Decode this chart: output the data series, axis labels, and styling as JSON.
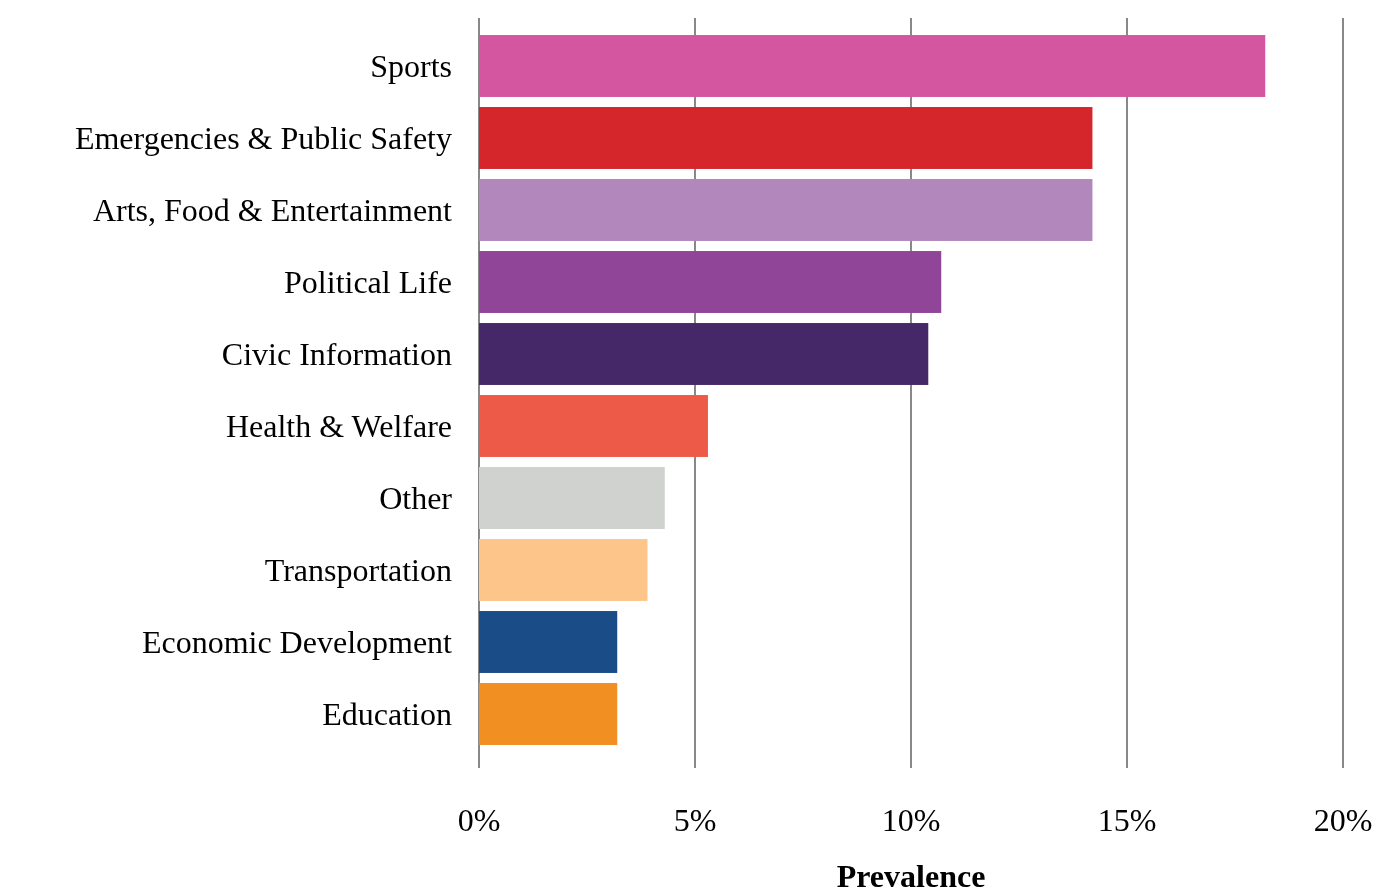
{
  "chart_data": {
    "type": "bar",
    "orientation": "horizontal",
    "xlabel": "Prevalence",
    "categories": [
      "Sports",
      "Emergencies & Public Safety",
      "Arts, Food & Entertainment",
      "Political Life",
      "Civic Information",
      "Health & Welfare",
      "Other",
      "Transportation",
      "Economic Development",
      "Education"
    ],
    "values": [
      18.2,
      14.2,
      14.2,
      10.7,
      10.4,
      5.3,
      4.3,
      3.9,
      3.2,
      3.2
    ],
    "colors": [
      "#d455a0",
      "#d4262b",
      "#b287bb",
      "#904598",
      "#452867",
      "#ed5b48",
      "#d0d2cf",
      "#fdc589",
      "#1a4c87",
      "#f18f22"
    ],
    "xlim": [
      0,
      20
    ],
    "xticks": [
      {
        "value": 0,
        "label": "0%"
      },
      {
        "value": 5,
        "label": "5%"
      },
      {
        "value": 10,
        "label": "10%"
      },
      {
        "value": 15,
        "label": "15%"
      },
      {
        "value": 20,
        "label": "20%"
      }
    ],
    "grid": "x"
  }
}
